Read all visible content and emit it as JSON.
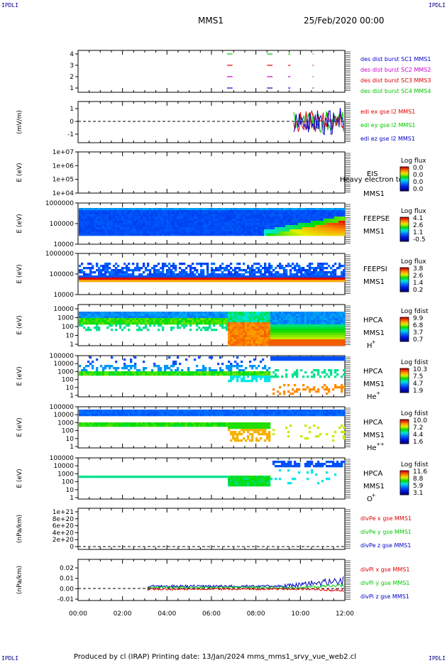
{
  "corner_label": "IPDLI",
  "header": {
    "spacecraft": "MMS1",
    "datetime": "25/Feb/2020 00:00"
  },
  "footer": "Produced by cl (IRAP)   Printing date: 13/Jan/2024   mms_mms1_srvy_vue_web2.cl",
  "colors": {
    "red": "#e00000",
    "green": "#00c800",
    "blue": "#0000c8",
    "magenta": "#c800c8",
    "dashed": "#000000"
  },
  "chart_data": [
    {
      "type": "line",
      "panel": "des-dist-burst",
      "ylabel": "",
      "yticks": [
        "4",
        "3",
        "2",
        "1"
      ],
      "ylim": [
        0.5,
        4.5
      ],
      "legend": [
        "des dist burst SC1 MMS1",
        "des dist burst SC2 MMS2",
        "des dist burst SC3 MMS3",
        "des dist burst SC4 MMS4"
      ],
      "series": [
        {
          "name": "des dist burst SC1 MMS1",
          "y": 1,
          "intervals_hours": [
            [
              6.7,
              6.95
            ],
            [
              8.5,
              8.75
            ],
            [
              9.45,
              9.55
            ],
            [
              10.55,
              10.6
            ]
          ]
        },
        {
          "name": "des dist burst SC2 MMS2",
          "y": 2,
          "intervals_hours": [
            [
              6.7,
              6.95
            ],
            [
              8.5,
              8.75
            ],
            [
              9.45,
              9.55
            ],
            [
              10.55,
              10.6
            ]
          ]
        },
        {
          "name": "des dist burst SC3 MMS3",
          "y": 3,
          "intervals_hours": [
            [
              6.7,
              6.95
            ],
            [
              8.5,
              8.75
            ],
            [
              9.45,
              9.55
            ],
            [
              10.55,
              10.6
            ]
          ]
        },
        {
          "name": "des dist burst SC4 MMS4",
          "y": 4,
          "intervals_hours": [
            [
              6.7,
              6.95
            ],
            [
              8.5,
              8.75
            ],
            [
              9.45,
              9.55
            ],
            [
              10.55,
              10.6
            ]
          ]
        }
      ]
    },
    {
      "type": "line",
      "panel": "edi-e",
      "ylabel": "(mV/m)",
      "yticks": [
        "1",
        "0",
        "-1"
      ],
      "ylim": [
        -1.5,
        1.5
      ],
      "legend": [
        "edi ex gse l2 MMS1",
        "edi ey gse l2 MMS1",
        "edi ez gse l2 MMS1"
      ],
      "data_start_hour": 9.7
    },
    {
      "type": "heatmap",
      "panel": "eis",
      "ylabel": "E (eV)",
      "yticks": [
        "1e+07",
        "1e+06",
        "1e+05",
        "1e+04"
      ],
      "instrument": [
        "EIS",
        "MMS1"
      ],
      "overlay_label": "Heavy electron to",
      "colorbar_title": "Log flux",
      "colorbar_ticks": [
        "0.0",
        "0.0",
        "0.0",
        "0.0"
      ]
    },
    {
      "type": "heatmap",
      "panel": "feeps-e",
      "ylabel": "E (eV)",
      "yticks": [
        "1000000",
        "100000",
        "10000"
      ],
      "instrument": [
        "FEEPSE",
        "MMS1"
      ],
      "colorbar_title": "Log flux",
      "colorbar_ticks": [
        "4.1",
        "2.6",
        "1.1",
        "-0.5"
      ]
    },
    {
      "type": "heatmap",
      "panel": "feeps-i",
      "ylabel": "E (eV)",
      "yticks": [
        "1000000",
        "100000",
        "10000"
      ],
      "instrument": [
        "FEEPSI",
        "MMS1"
      ],
      "colorbar_title": "Log flux",
      "colorbar_ticks": [
        "3.8",
        "2.6",
        "1.4",
        "0.2"
      ]
    },
    {
      "type": "heatmap",
      "panel": "hpca-h",
      "ylabel": "E (eV)",
      "yticks": [
        "10000",
        "1000",
        "100",
        "10",
        "1"
      ],
      "instrument": [
        "HPCA",
        "MMS1"
      ],
      "species": "H",
      "species_charge": "+",
      "colorbar_title": "Log fdist",
      "colorbar_ticks": [
        "9.9",
        "6.8",
        "3.7",
        "0.7"
      ]
    },
    {
      "type": "heatmap",
      "panel": "hpca-he",
      "ylabel": "E (eV)",
      "yticks": [
        "100000",
        "10000",
        "1000",
        "100",
        "10",
        "1"
      ],
      "instrument": [
        "HPCA",
        "MMS1"
      ],
      "species": "He",
      "species_charge": "+",
      "colorbar_title": "Log fdist",
      "colorbar_ticks": [
        "10.3",
        "7.5",
        "4.7",
        "1.9"
      ]
    },
    {
      "type": "heatmap",
      "panel": "hpca-hepp",
      "ylabel": "E (eV)",
      "yticks": [
        "100000",
        "10000",
        "1000",
        "100",
        "10",
        "1"
      ],
      "instrument": [
        "HPCA",
        "MMS1"
      ],
      "species": "He",
      "species_charge": "++",
      "colorbar_title": "Log fdist",
      "colorbar_ticks": [
        "10.0",
        "7.2",
        "4.4",
        "1.6"
      ]
    },
    {
      "type": "heatmap",
      "panel": "hpca-o",
      "ylabel": "E (eV)",
      "yticks": [
        "100000",
        "10000",
        "1000",
        "100",
        "10",
        "1"
      ],
      "instrument": [
        "HPCA",
        "MMS1"
      ],
      "species": "O",
      "species_charge": "+",
      "colorbar_title": "Log fdist",
      "colorbar_ticks": [
        "11.6",
        "8.8",
        "5.9",
        "3.1"
      ]
    },
    {
      "type": "line",
      "panel": "divpe",
      "ylabel": "(nPa/km)",
      "yticks": [
        "1e+21",
        "8e+20",
        "6e+20",
        "4e+20",
        "2e+20",
        "0"
      ],
      "ylim": [
        0,
        1e+21
      ],
      "legend": [
        "divPe x gse MMS1",
        "divPe y gse MMS1",
        "divPe z gse MMS1"
      ]
    },
    {
      "type": "line",
      "panel": "divpi",
      "ylabel": "(nPa/km)",
      "yticks": [
        "0.02",
        "0.01",
        "0.00",
        "-0.01"
      ],
      "ylim": [
        -0.015,
        0.025
      ],
      "legend": [
        "divPi x gse MMS1",
        "divPi y gse MMS1",
        "divPi z gse MMS1"
      ],
      "data_start_hour": 3.15
    }
  ],
  "x_axis": {
    "ticks": [
      "00:00",
      "02:00",
      "04:00",
      "06:00",
      "08:00",
      "10:00",
      "12:00"
    ],
    "xlim_hours": [
      0,
      12
    ]
  }
}
